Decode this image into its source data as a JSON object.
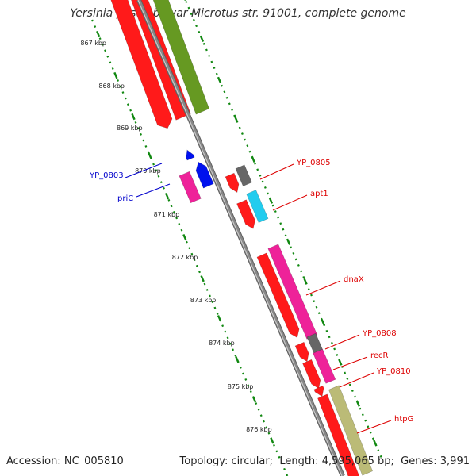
{
  "title": "Yersinia pestis biovar Microtus str. 91001, complete genome",
  "footer": {
    "accession_label": "Accession:",
    "accession": "NC_005810",
    "topology_label": "Topology:",
    "topology": "circular",
    "length_label": "Length:",
    "length": "4,595,065 bp",
    "genes_label": "Genes:",
    "genes": "3,991"
  },
  "colors": {
    "backbone": "#888888",
    "tick": "#118811",
    "red": "#ff1a1a",
    "olive": "#669922",
    "khaki": "#bbbb77",
    "pink": "#ee2299",
    "blue": "#0011ee",
    "cyan": "#22ccee",
    "gray": "#666666",
    "label_blue": "#0000cc",
    "label_red": "#dd0000"
  },
  "ticks": [
    "867 kbp",
    "868 kbp",
    "869 kbp",
    "870 kbp",
    "871 kbp",
    "872 kbp",
    "873 kbp",
    "874 kbp",
    "875 kbp",
    "876 kbp"
  ],
  "gene_labels": [
    {
      "name": "YP_0803",
      "color": "label_blue"
    },
    {
      "name": "priC",
      "color": "label_blue"
    },
    {
      "name": "YP_0805",
      "color": "label_red"
    },
    {
      "name": "apt1",
      "color": "label_red"
    },
    {
      "name": "dnaX",
      "color": "label_red"
    },
    {
      "name": "YP_0808",
      "color": "label_red"
    },
    {
      "name": "recR",
      "color": "label_red"
    },
    {
      "name": "YP_0810",
      "color": "label_red"
    },
    {
      "name": "htpG",
      "color": "label_red"
    }
  ]
}
